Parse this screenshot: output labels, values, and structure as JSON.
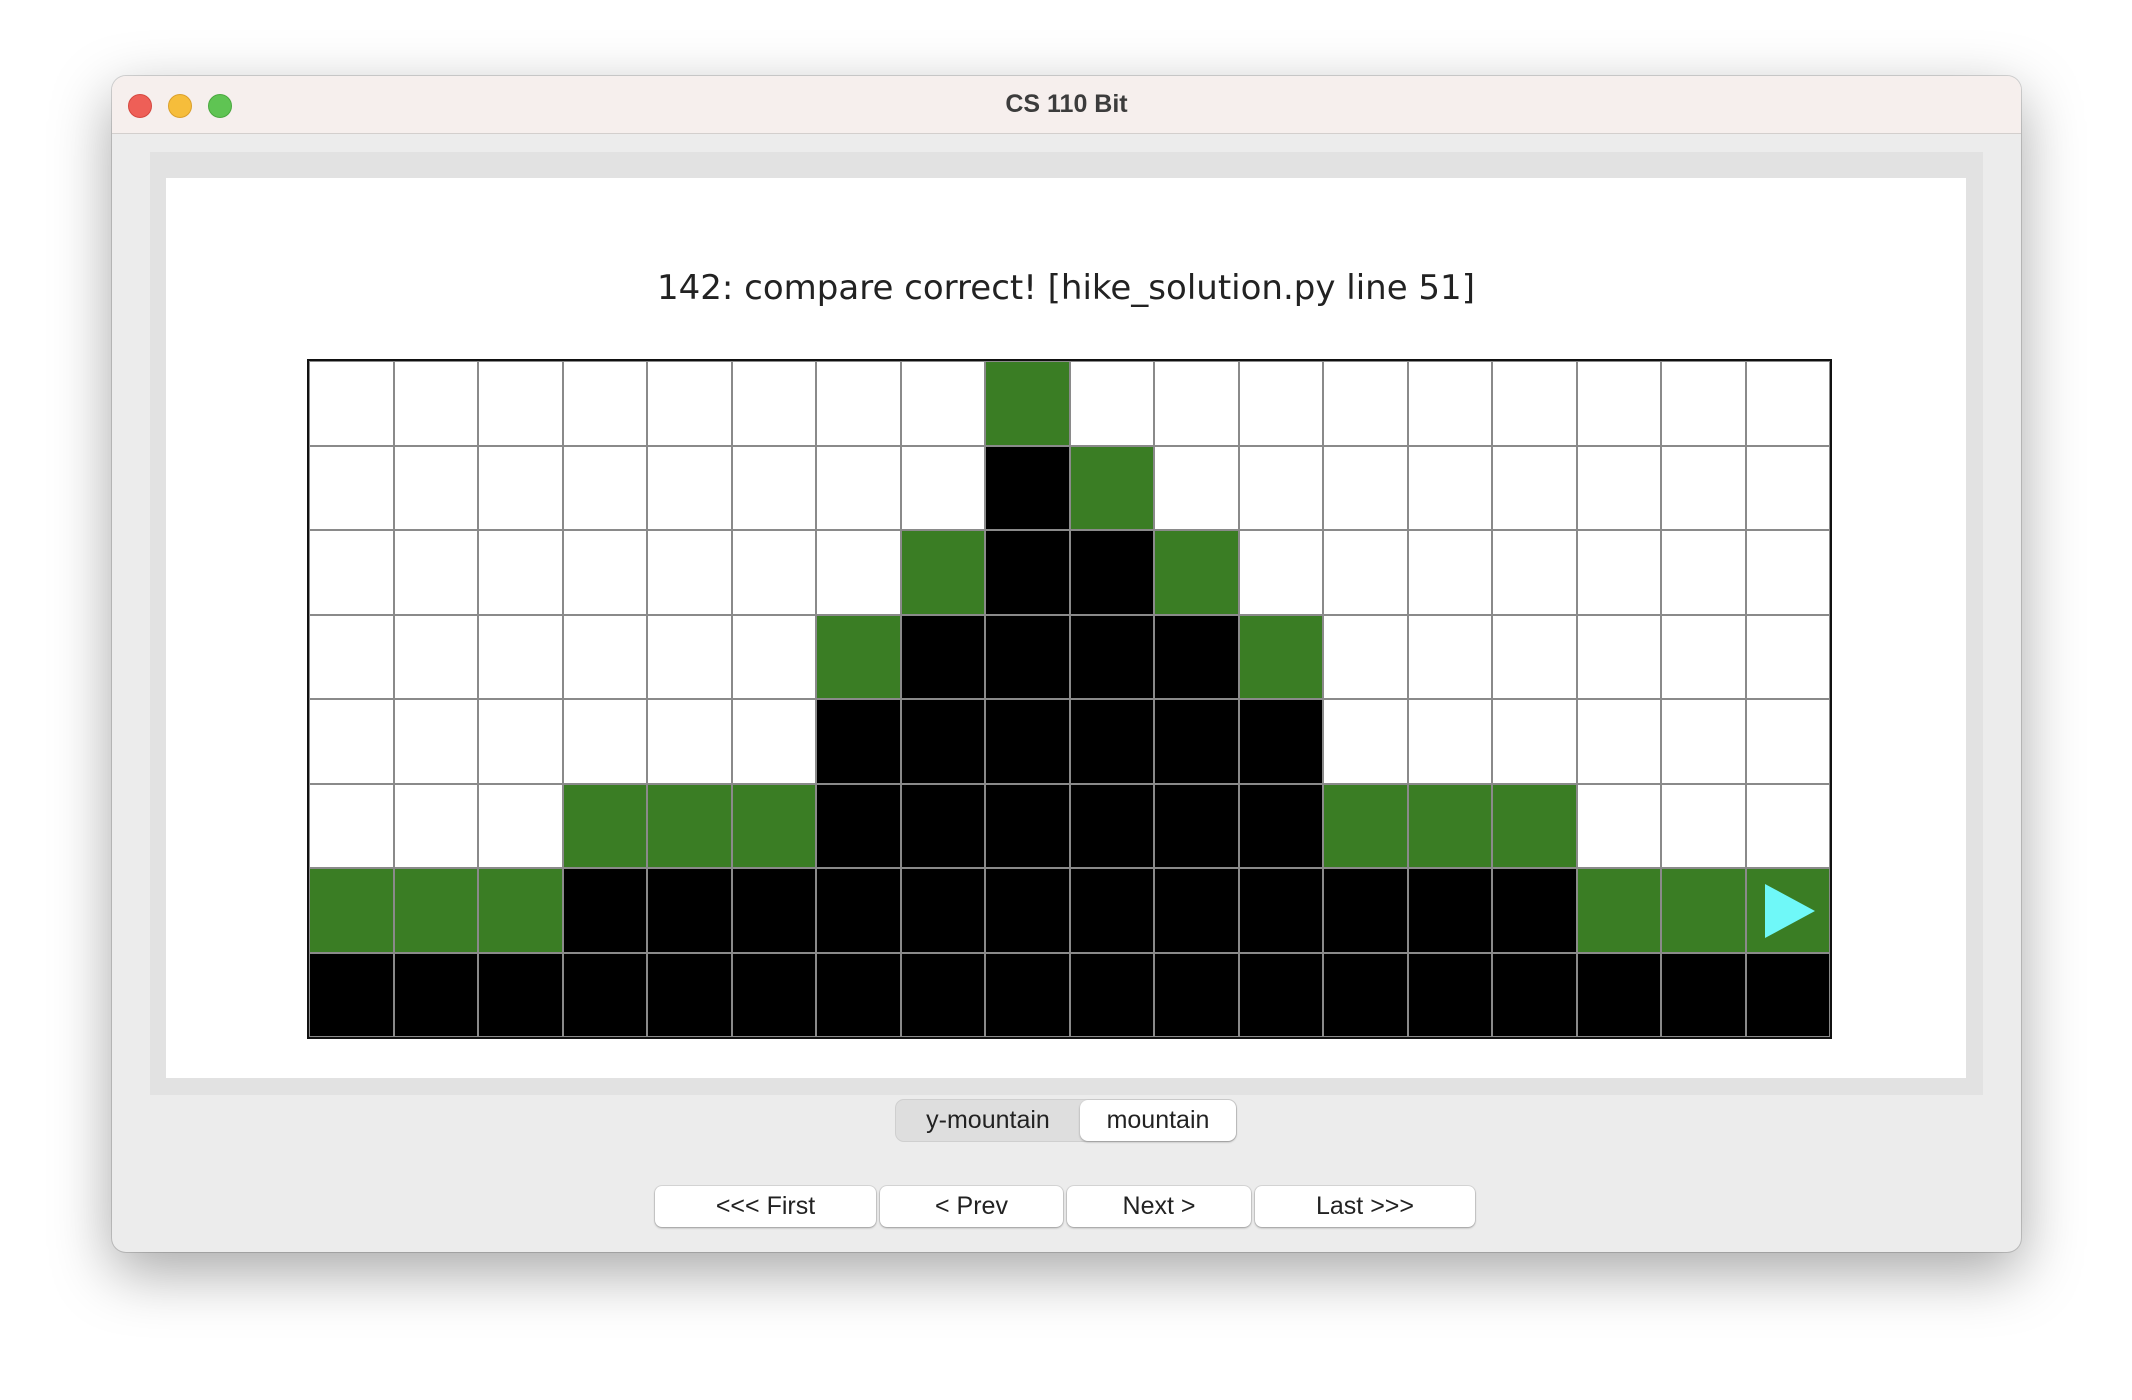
{
  "window": {
    "title": "CS 110 Bit"
  },
  "message": "142: compare correct!  [hike_solution.py line 51]",
  "world": {
    "columns": 18,
    "rows": 8,
    "legend": {
      "W": "blank",
      "B": "black",
      "G": "green"
    },
    "colors": {
      "W": "#ffffff",
      "B": "#000000",
      "G": "#3a7d24",
      "bit": "#6ff8f8"
    },
    "grid": [
      "WWWWWWWWGWWWWWWWWW",
      "WWWWWWWWBGWWWWWWWW",
      "WWWWWWWGBBGWWWWWWW",
      "WWWWWWGBBBBGWWWWWW",
      "WWWWWWBBBBBBWWWWWW",
      "WWWGGGBBBBBBGGGWWW",
      "GGGBBBBBBBBBBBBGGG",
      "BBBBBBBBBBBBBBBBBB"
    ],
    "bit": {
      "row": 6,
      "col": 17,
      "facing": "right",
      "icon": "triangle-right-icon"
    }
  },
  "tabs": [
    {
      "label": "y-mountain",
      "selected": false
    },
    {
      "label": "mountain",
      "selected": true
    }
  ],
  "nav": {
    "first": "<<< First",
    "prev": "< Prev",
    "next": "Next >",
    "last": "Last >>>"
  }
}
